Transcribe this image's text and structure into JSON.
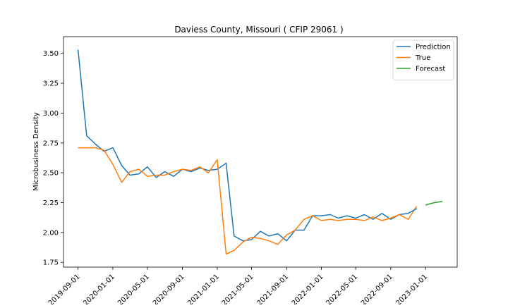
{
  "chart_data": {
    "type": "line",
    "title": "Daviess County, Missouri ( CFIP 29061 )",
    "xlabel": "",
    "ylabel": "Microbusiness Density",
    "xlim": [
      "2019-07-12",
      "2023-04-22"
    ],
    "ylim": [
      1.71,
      3.64
    ],
    "x_ticks": [
      "2019-09-01",
      "2020-01-01",
      "2020-05-01",
      "2020-09-01",
      "2021-01-01",
      "2021-05-01",
      "2021-09-01",
      "2022-01-01",
      "2022-05-01",
      "2022-09-01",
      "2023-01-01"
    ],
    "y_ticks": [
      "1.75",
      "2.00",
      "2.25",
      "2.50",
      "2.75",
      "3.00",
      "3.25",
      "3.50"
    ],
    "legend_position": "top-right",
    "grid": false,
    "series": [
      {
        "name": "Prediction",
        "color": "#1f77b4",
        "x": [
          "2019-09-01",
          "2019-10-01",
          "2019-11-01",
          "2019-12-01",
          "2020-01-01",
          "2020-02-01",
          "2020-03-01",
          "2020-04-01",
          "2020-05-01",
          "2020-06-01",
          "2020-07-01",
          "2020-08-01",
          "2020-09-01",
          "2020-10-01",
          "2020-11-01",
          "2020-12-01",
          "2021-01-01",
          "2021-02-01",
          "2021-03-01",
          "2021-04-01",
          "2021-05-01",
          "2021-06-01",
          "2021-07-01",
          "2021-08-01",
          "2021-09-01",
          "2021-10-01",
          "2021-11-01",
          "2021-12-01",
          "2022-01-01",
          "2022-02-01",
          "2022-03-01",
          "2022-04-01",
          "2022-05-01",
          "2022-06-01",
          "2022-07-01",
          "2022-08-01",
          "2022-09-01",
          "2022-10-01",
          "2022-11-01"
        ],
        "values": [
          3.53,
          2.81,
          2.74,
          2.68,
          2.71,
          2.56,
          2.48,
          2.49,
          2.55,
          2.46,
          2.51,
          2.47,
          2.53,
          2.51,
          2.54,
          2.52,
          2.53,
          2.58,
          1.97,
          1.93,
          1.94,
          2.01,
          1.97,
          1.99,
          1.93,
          2.02,
          2.02,
          2.14,
          2.14,
          2.15,
          2.12,
          2.14,
          2.12,
          2.15,
          2.11,
          2.16,
          2.11,
          2.15,
          2.16
        ]
      },
      {
        "name": "True",
        "color": "#ff7f0e",
        "x": [
          "2019-09-01",
          "2019-10-01",
          "2019-11-01",
          "2019-12-01",
          "2020-01-01",
          "2020-02-01",
          "2020-03-01",
          "2020-04-01",
          "2020-05-01",
          "2020-06-01",
          "2020-07-01",
          "2020-08-01",
          "2020-09-01",
          "2020-10-01",
          "2020-11-01",
          "2020-12-01",
          "2021-01-01",
          "2021-02-01",
          "2021-03-01",
          "2021-04-01",
          "2021-05-01",
          "2021-06-01",
          "2021-07-01",
          "2021-08-01",
          "2021-09-01",
          "2021-10-01",
          "2021-11-01",
          "2021-12-01",
          "2022-01-01",
          "2022-02-01",
          "2022-03-01",
          "2022-04-01",
          "2022-05-01",
          "2022-06-01",
          "2022-07-01",
          "2022-08-01",
          "2022-09-01",
          "2022-10-01",
          "2022-11-01",
          "2022-12-01"
        ],
        "values": [
          2.71,
          2.71,
          2.71,
          2.69,
          2.57,
          2.42,
          2.51,
          2.53,
          2.47,
          2.48,
          2.48,
          2.51,
          2.53,
          2.52,
          2.55,
          2.5,
          2.61,
          1.82,
          1.85,
          1.92,
          1.96,
          1.95,
          1.93,
          1.9,
          1.98,
          2.02,
          2.11,
          2.14,
          2.1,
          2.11,
          2.1,
          2.11,
          2.11,
          2.1,
          2.13,
          2.1,
          2.12,
          2.15,
          2.11,
          2.22
        ]
      },
      {
        "name": "",
        "color": "#1f77b4",
        "x": [
          "2022-11-01",
          "2022-12-01"
        ],
        "values": [
          2.16,
          2.2
        ]
      },
      {
        "name": "Forecast",
        "color": "#2ca02c",
        "x": [
          "2023-01-01",
          "2023-02-01",
          "2023-03-01"
        ],
        "values": [
          2.23,
          2.25,
          2.26
        ]
      }
    ]
  }
}
